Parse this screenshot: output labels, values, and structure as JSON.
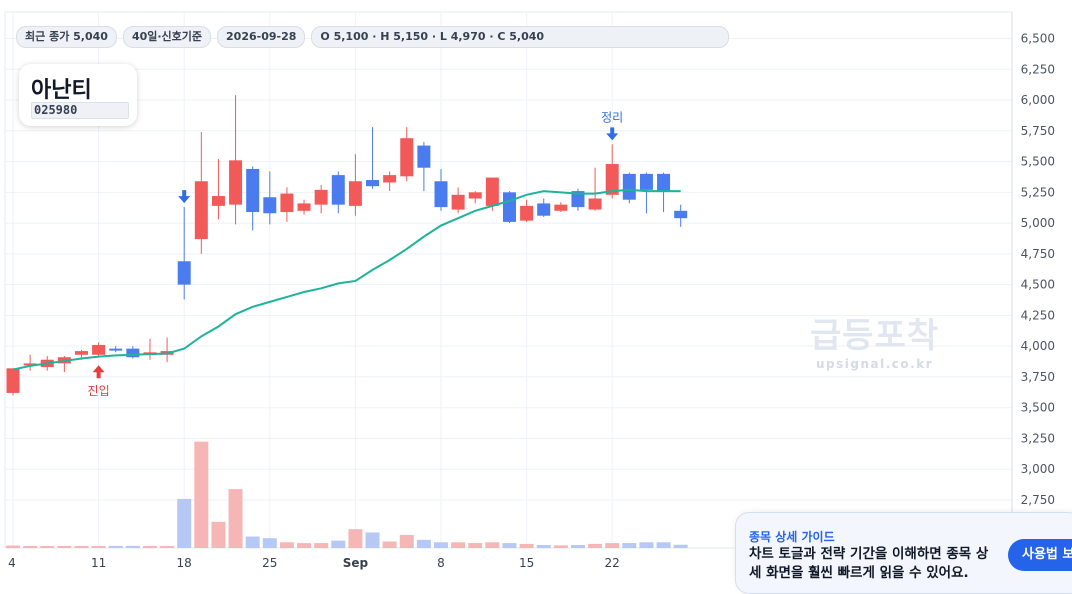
{
  "info_bar": {
    "close_chip": "최근 종가 5,040",
    "basis_chip": "40일·신호기준",
    "date_chip": "2026-09-28",
    "ohlc_chip": "O 5,100 · H 5,150 · L 4,970 · C 5,040"
  },
  "stock": {
    "name": "아난티",
    "code": "025980"
  },
  "watermark": {
    "title": "급등포착",
    "url": "upsignal.co.kr"
  },
  "guide": {
    "title": "종목 상세 가이드",
    "body": "차트 토글과 전략 기간을 이해하면 종목 상세 화면을 훨씬 빠르게 읽을 수 있어요.",
    "button": "사용법 보기"
  },
  "colors": {
    "up": "#f25a5a",
    "down": "#4a7cf0",
    "ma": "#1fb39a",
    "grid": "#eef2f7",
    "signal_entry": "#e53e3e",
    "signal_exit": "#2f6fe0"
  },
  "chart_data": {
    "type": "candlestick",
    "title": "",
    "y_axis": {
      "min": 2500,
      "max": 6600,
      "position": "right",
      "ticks": [
        6500,
        6250,
        6000,
        5750,
        5500,
        5250,
        5000,
        4750,
        4500,
        4250,
        4000,
        3750,
        3500,
        3250,
        3000,
        2750
      ],
      "tick_labels": [
        "6,500",
        "6,250",
        "6,000",
        "5,750",
        "5,500",
        "5,250",
        "5,000",
        "4,750",
        "4,500",
        "4,250",
        "4,000",
        "3,750",
        "3,500",
        "3,250",
        "3,000",
        "2,750"
      ]
    },
    "x_axis": {
      "labels": [
        {
          "index": 0,
          "text": "4"
        },
        {
          "index": 5,
          "text": "11"
        },
        {
          "index": 10,
          "text": "18"
        },
        {
          "index": 15,
          "text": "25"
        },
        {
          "index": 20,
          "text": "Sep"
        },
        {
          "index": 25,
          "text": "8"
        },
        {
          "index": 30,
          "text": "15"
        },
        {
          "index": 35,
          "text": "22"
        }
      ]
    },
    "grid": true,
    "candles": [
      {
        "o": 3620,
        "h": 3820,
        "l": 3600,
        "c": 3820
      },
      {
        "o": 3850,
        "h": 3930,
        "l": 3800,
        "c": 3860
      },
      {
        "o": 3830,
        "h": 3920,
        "l": 3800,
        "c": 3890
      },
      {
        "o": 3860,
        "h": 3920,
        "l": 3790,
        "c": 3910
      },
      {
        "o": 3930,
        "h": 3970,
        "l": 3890,
        "c": 3960
      },
      {
        "o": 3930,
        "h": 4030,
        "l": 3910,
        "c": 4010
      },
      {
        "o": 3980,
        "h": 4000,
        "l": 3950,
        "c": 3970
      },
      {
        "o": 3980,
        "h": 4000,
        "l": 3900,
        "c": 3910
      },
      {
        "o": 3930,
        "h": 4060,
        "l": 3890,
        "c": 3950
      },
      {
        "o": 3930,
        "h": 4070,
        "l": 3870,
        "c": 3960
      },
      {
        "o": 4690,
        "h": 5130,
        "l": 4380,
        "c": 4500
      },
      {
        "o": 4870,
        "h": 5740,
        "l": 4750,
        "c": 5340
      },
      {
        "o": 5140,
        "h": 5520,
        "l": 5030,
        "c": 5220
      },
      {
        "o": 5150,
        "h": 6040,
        "l": 4990,
        "c": 5510
      },
      {
        "o": 5440,
        "h": 5460,
        "l": 4940,
        "c": 5090
      },
      {
        "o": 5210,
        "h": 5420,
        "l": 4990,
        "c": 5080
      },
      {
        "o": 5090,
        "h": 5290,
        "l": 5010,
        "c": 5240
      },
      {
        "o": 5100,
        "h": 5190,
        "l": 5070,
        "c": 5160
      },
      {
        "o": 5150,
        "h": 5310,
        "l": 5080,
        "c": 5270
      },
      {
        "o": 5390,
        "h": 5420,
        "l": 5080,
        "c": 5150
      },
      {
        "o": 5140,
        "h": 5560,
        "l": 5060,
        "c": 5340
      },
      {
        "o": 5350,
        "h": 5780,
        "l": 5280,
        "c": 5300
      },
      {
        "o": 5330,
        "h": 5420,
        "l": 5260,
        "c": 5390
      },
      {
        "o": 5380,
        "h": 5780,
        "l": 5340,
        "c": 5690
      },
      {
        "o": 5630,
        "h": 5660,
        "l": 5260,
        "c": 5450
      },
      {
        "o": 5340,
        "h": 5440,
        "l": 5100,
        "c": 5130
      },
      {
        "o": 5110,
        "h": 5290,
        "l": 5080,
        "c": 5230
      },
      {
        "o": 5200,
        "h": 5260,
        "l": 5160,
        "c": 5250
      },
      {
        "o": 5140,
        "h": 5350,
        "l": 5100,
        "c": 5370
      },
      {
        "o": 5250,
        "h": 5260,
        "l": 5000,
        "c": 5010
      },
      {
        "o": 5020,
        "h": 5190,
        "l": 5010,
        "c": 5140
      },
      {
        "o": 5160,
        "h": 5200,
        "l": 5050,
        "c": 5060
      },
      {
        "o": 5100,
        "h": 5170,
        "l": 5090,
        "c": 5150
      },
      {
        "o": 5260,
        "h": 5280,
        "l": 5100,
        "c": 5130
      },
      {
        "o": 5110,
        "h": 5450,
        "l": 5100,
        "c": 5200
      },
      {
        "o": 5230,
        "h": 5640,
        "l": 5200,
        "c": 5480
      },
      {
        "o": 5400,
        "h": 5410,
        "l": 5160,
        "c": 5190
      },
      {
        "o": 5400,
        "h": 5410,
        "l": 5080,
        "c": 5270
      },
      {
        "o": 5400,
        "h": 5410,
        "l": 5090,
        "c": 5260
      },
      {
        "o": 5100,
        "h": 5150,
        "l": 4970,
        "c": 5040
      }
    ],
    "moving_average": [
      3810,
      3840,
      3860,
      3880,
      3900,
      3915,
      3925,
      3930,
      3935,
      3940,
      3980,
      4080,
      4160,
      4260,
      4320,
      4360,
      4400,
      4440,
      4470,
      4510,
      4530,
      4620,
      4700,
      4790,
      4890,
      4980,
      5040,
      5100,
      5140,
      5180,
      5230,
      5260,
      5250,
      5240,
      5240,
      5260,
      5270,
      5260,
      5260,
      5260
    ],
    "volume": [
      0.015,
      0.012,
      0.012,
      0.012,
      0.012,
      0.012,
      0.013,
      0.013,
      0.012,
      0.012,
      0.3,
      0.65,
      0.16,
      0.36,
      0.07,
      0.06,
      0.035,
      0.03,
      0.03,
      0.045,
      0.115,
      0.095,
      0.04,
      0.08,
      0.05,
      0.035,
      0.035,
      0.03,
      0.035,
      0.03,
      0.025,
      0.018,
      0.016,
      0.018,
      0.025,
      0.03,
      0.03,
      0.035,
      0.035,
      0.02
    ],
    "volume_scale_max": 1.0,
    "signals": [
      {
        "index": 5,
        "type": "entry",
        "text": "진입"
      },
      {
        "index": 10,
        "type": "exit",
        "text": ""
      },
      {
        "index": 35,
        "type": "exit",
        "text": "정리"
      }
    ]
  }
}
